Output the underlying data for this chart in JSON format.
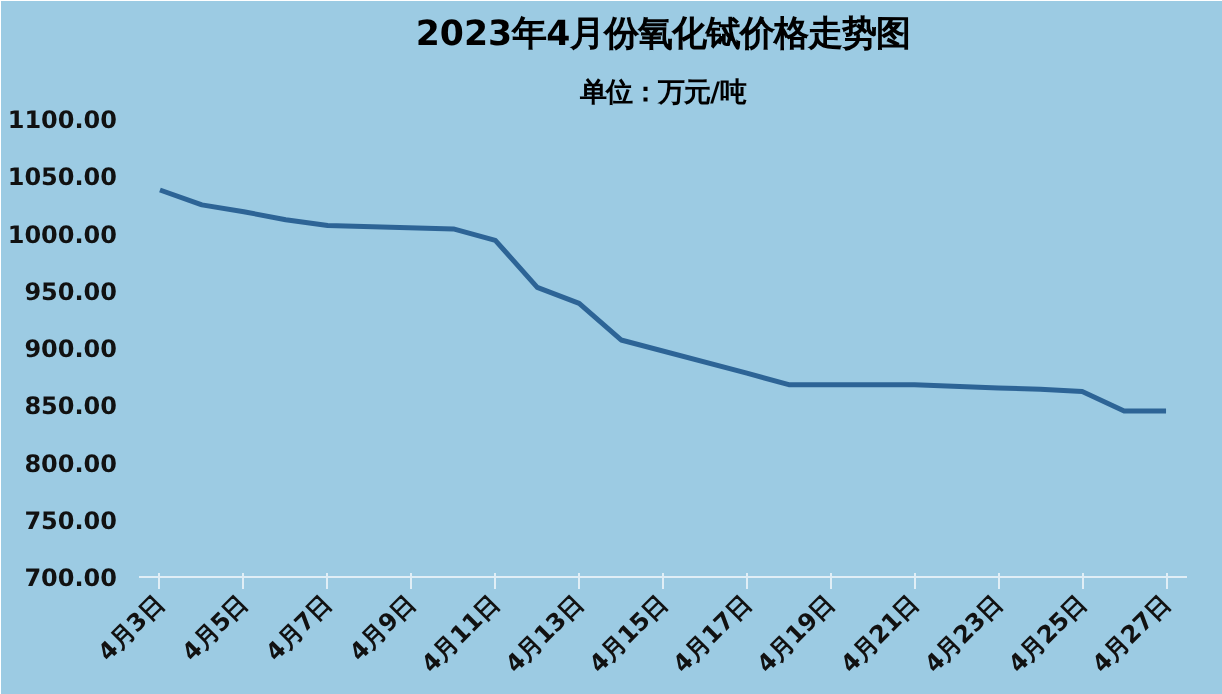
{
  "chart_data": {
    "type": "line",
    "title": "2023年4月份氧化铽价格走势图",
    "subtitle": "单位：万元/吨",
    "x": [
      "2023-04-03",
      "2023-04-04",
      "2023-04-05",
      "2023-04-06",
      "2023-04-07",
      "2023-04-10",
      "2023-04-11",
      "2023-04-12",
      "2023-04-13",
      "2023-04-14",
      "2023-04-17",
      "2023-04-18",
      "2023-04-19",
      "2023-04-20",
      "2023-04-21",
      "2023-04-23",
      "2023-04-24",
      "2023-04-25",
      "2023-04-26",
      "2023-04-27"
    ],
    "series": [
      {
        "color": "#2d6496",
        "values": [
          1038,
          1025,
          1019,
          1012,
          1007,
          1004,
          994,
          953,
          939,
          907,
          878,
          868,
          868,
          868,
          868,
          865,
          864,
          862,
          845,
          845
        ]
      }
    ],
    "xlim": [
      "2023-04-02T12:00",
      "2023-04-27T12:00"
    ],
    "xticks": [
      {
        "value": "2023-04-03",
        "label": "4月3日"
      },
      {
        "value": "2023-04-05",
        "label": "4月5日"
      },
      {
        "value": "2023-04-07",
        "label": "4月7日"
      },
      {
        "value": "2023-04-09",
        "label": "4月9日"
      },
      {
        "value": "2023-04-11",
        "label": "4月11日"
      },
      {
        "value": "2023-04-13",
        "label": "4月13日"
      },
      {
        "value": "2023-04-15",
        "label": "4月15日"
      },
      {
        "value": "2023-04-17",
        "label": "4月17日"
      },
      {
        "value": "2023-04-19",
        "label": "4月19日"
      },
      {
        "value": "2023-04-21",
        "label": "4月21日"
      },
      {
        "value": "2023-04-23",
        "label": "4月23日"
      },
      {
        "value": "2023-04-25",
        "label": "4月25日"
      },
      {
        "value": "2023-04-27",
        "label": "4月27日"
      }
    ],
    "ylim": [
      700,
      1100
    ],
    "yticks": [
      {
        "value": 700,
        "label": "700.00"
      },
      {
        "value": 750,
        "label": "750.00"
      },
      {
        "value": 800,
        "label": "800.00"
      },
      {
        "value": 850,
        "label": "850.00"
      },
      {
        "value": 900,
        "label": "900.00"
      },
      {
        "value": 950,
        "label": "950.00"
      },
      {
        "value": 1000,
        "label": "1000.00"
      },
      {
        "value": 1050,
        "label": "1050.00"
      },
      {
        "value": 1100,
        "label": "1100.00"
      }
    ],
    "grid": false,
    "line_style": "solid"
  }
}
